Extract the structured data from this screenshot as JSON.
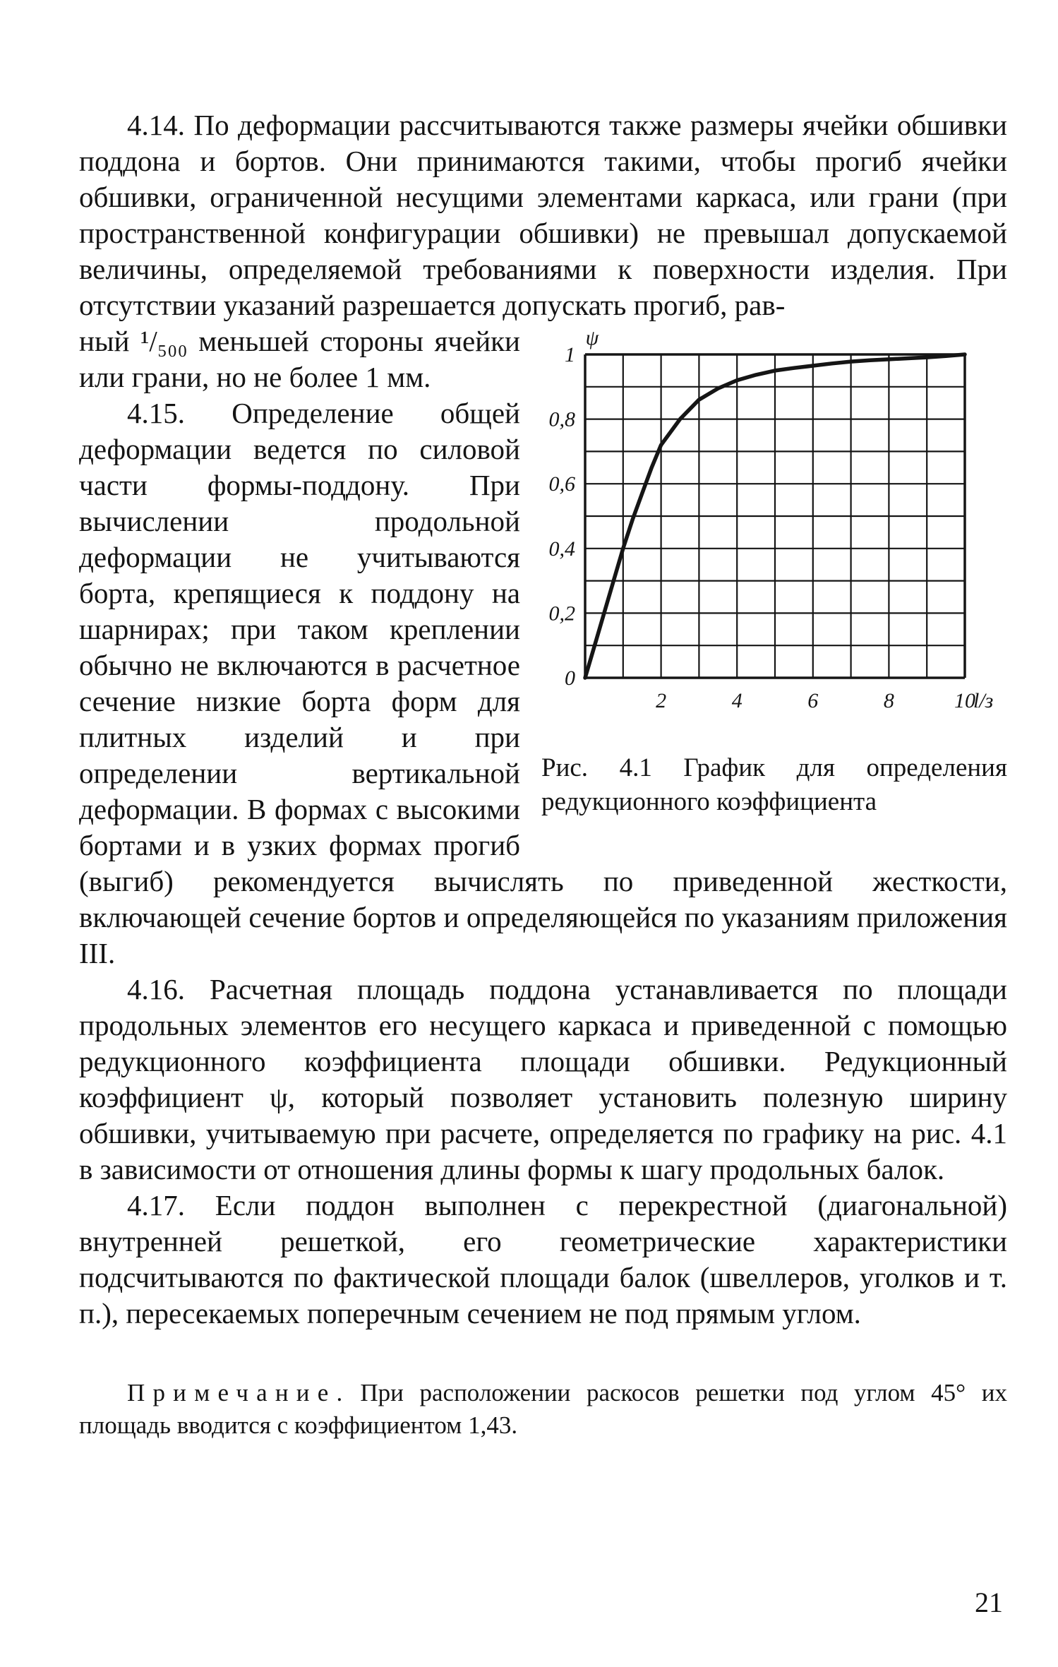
{
  "page": {
    "number": "21"
  },
  "paragraphs": {
    "p414_part1": "4.14. По деформации рассчитываются также размеры ячейки обшивки поддона и бортов. Они принимаются такими, чтобы прогиб ячейки обшивки, ограниченной несущими элементами каркаса, или грани (при пространственной конфигурации обшивки) не превышал допускаемой величины, определяемой требованиями к поверхности изделия. При отсутствии указаний разрешается допускать прогиб, рав-",
    "p414_part2": "ный ¹/₅₀₀ меньшей стороны ячейки или грани, но не более 1 мм.",
    "p415": "4.15. Определение общей деформации ведется по силовой части формы-поддону. При вычислении продольной деформации не учитываются борта, крепящиеся к поддону на шарнирах; при таком креплении обычно не включаются в расчетное сечение низкие борта форм для плитных изделий и при определении вертикальной деформации. В формах с высокими бортами и в узких формах прогиб (выгиб) рекомендуется вычислять по приведенной жесткости, включающей сечение бортов и определяющейся по указаниям приложения III.",
    "p416": "4.16. Расчетная площадь поддона устанавливается по площади продольных элементов его несущего каркаса и приведенной с помощью редукционного коэффициента площади обшивки. Редукционный коэффициент ψ, который позволяет установить полезную ширину обшивки, учитываемую при расчете, определяется по графику на рис. 4.1 в зависимости от отношения длины формы к шагу продольных балок.",
    "p417": "4.17. Если поддон выполнен с перекрестной (диагональной) внутренней решеткой, его геометрические характеристики подсчитываются по фактической площади балок (швеллеров, уголков и т. п.), пересекаемых поперечным сечением не под прямым углом."
  },
  "figure": {
    "caption": "Рис. 4.1 График для определения редукционного коэффициента"
  },
  "note": {
    "label": "Примечание.",
    "text": "При расположении раскосов решетки под углом 45° их площадь вводится с коэффициентом 1,43."
  },
  "chart_data": {
    "type": "line",
    "title": "Рис. 4.1 График для определения редукционного коэффициента",
    "xlabel": "l/з",
    "ylabel": "ψ",
    "xlim": [
      0,
      10
    ],
    "ylim": [
      0,
      1
    ],
    "grid": true,
    "x_grid_step": 1,
    "y_grid_step": 0.1,
    "xticks": [
      2,
      4,
      6,
      8,
      10
    ],
    "ytick_values": [
      1,
      0.8,
      0.6,
      0.4,
      0.2,
      0
    ],
    "ytick_labels": [
      "1",
      "0,8",
      "0,6",
      "0,4",
      "0,2",
      "0"
    ],
    "legend": false,
    "line_color": "#151515",
    "series": [
      {
        "name": "ψ(l/з)",
        "x": [
          0,
          0.25,
          0.5,
          0.75,
          1,
          1.25,
          1.5,
          1.75,
          2,
          2.5,
          3,
          3.5,
          4,
          4.5,
          5,
          5.5,
          6,
          6.5,
          7,
          7.5,
          8,
          8.5,
          9,
          9.5,
          10
        ],
        "y": [
          0,
          0.1,
          0.2,
          0.3,
          0.4,
          0.49,
          0.57,
          0.65,
          0.72,
          0.8,
          0.86,
          0.895,
          0.92,
          0.937,
          0.95,
          0.958,
          0.965,
          0.972,
          0.978,
          0.982,
          0.985,
          0.988,
          0.991,
          0.995,
          1.0
        ]
      }
    ]
  }
}
